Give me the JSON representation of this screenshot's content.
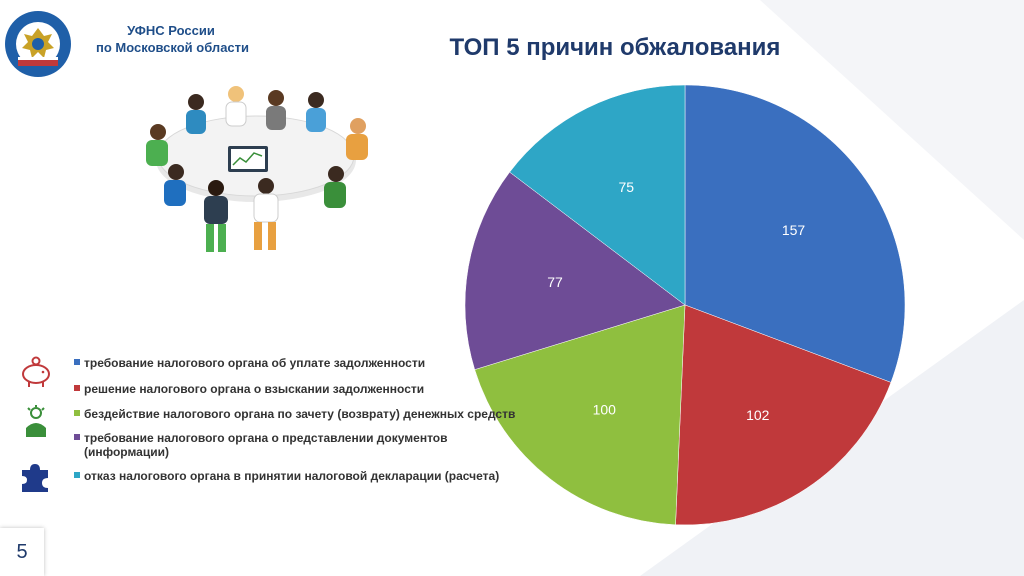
{
  "header": {
    "org_line1": "УФНС России",
    "org_line2": "по Московской области",
    "title": "ТОП 5 причин обжалования"
  },
  "logo": {
    "icon": "fns-emblem-icon",
    "text": "ФЕДЕРАЛЬНАЯ НАЛОГОВАЯ СЛУЖБА"
  },
  "illustration": {
    "icon": "people-at-table-illustration"
  },
  "side_icons": [
    "piggy-bank-icon",
    "person-idea-icon",
    "puzzle-icon"
  ],
  "page_number": "5",
  "colors": {
    "accent": "#1f3a6b",
    "org": "#1f4e89",
    "background_shape": "#f0f2f6"
  },
  "chart_data": {
    "type": "pie",
    "title": "ТОП 5 причин обжалования",
    "legend_position": "left",
    "slices": [
      {
        "label": "требование налогового органа об уплате задолженности",
        "value": 157,
        "color": "#3a6fbf"
      },
      {
        "label": "решение налогового органа о взыскании задолженности",
        "value": 102,
        "color": "#c0393b"
      },
      {
        "label": "бездействие налогового органа по зачету (возврату) денежных средств",
        "value": 100,
        "color": "#8fbf3f"
      },
      {
        "label": "требование налогового органа о представлении документов\n(информации)",
        "value": 77,
        "color": "#6e4c96"
      },
      {
        "label": "отказ налогового органа в принятии налоговой декларации (расчета)",
        "value": 75,
        "color": "#2ea6c6"
      }
    ]
  }
}
